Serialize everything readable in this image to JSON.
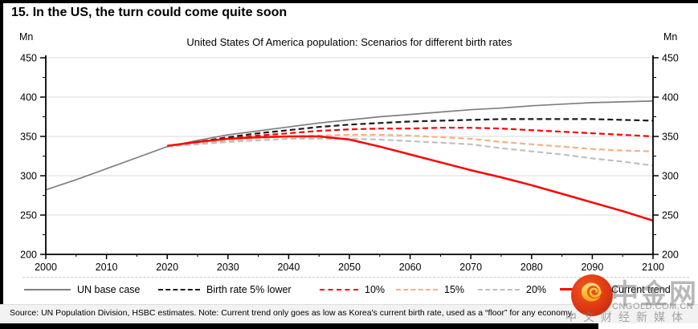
{
  "page_title": "15. In the US, the turn could come quite soon",
  "axis_unit_left": "Mn",
  "axis_unit_right": "Mn",
  "footer": {
    "source": "Source: UN Population Division, HSBC estimates. Note: Current trend only goes as low as Korea's current birth rate, used as a “floor” for any economy."
  },
  "watermark": {
    "brand": "中金网",
    "domain": "CNGOLD.COM.CN",
    "tagline": "中文财经新媒体"
  },
  "chart_data": {
    "type": "line",
    "title": "United States Of America population: Scenarios for different birth rates",
    "xlabel": "",
    "ylabel": "Mn",
    "ylim": [
      200,
      450
    ],
    "xlim": [
      2000,
      2100
    ],
    "y_ticks": [
      200,
      250,
      300,
      350,
      400,
      450
    ],
    "x_ticks": [
      2000,
      2010,
      2020,
      2030,
      2040,
      2050,
      2060,
      2070,
      2080,
      2090,
      2100
    ],
    "grid": "horizontal",
    "legend_position": "bottom",
    "x_years": [
      2000,
      2005,
      2010,
      2015,
      2020,
      2025,
      2030,
      2035,
      2040,
      2045,
      2050,
      2055,
      2060,
      2065,
      2070,
      2075,
      2080,
      2085,
      2090,
      2095,
      2100
    ],
    "series": [
      {
        "name": "UN base case",
        "color": "#7f7f7f",
        "style": "solid",
        "width": 1.7,
        "values": [
          282,
          295,
          309,
          323,
          337,
          345,
          352,
          357,
          362,
          367,
          371,
          375,
          378,
          381,
          384,
          386,
          389,
          391,
          393,
          394,
          395
        ]
      },
      {
        "name": "Birth rate 5% lower",
        "color": "#1a1a1a",
        "style": "dashed",
        "width": 2.2,
        "values": [
          null,
          null,
          null,
          null,
          337,
          343,
          349,
          354,
          358,
          362,
          365,
          367,
          369,
          370,
          371,
          372,
          372,
          372,
          372,
          371,
          370
        ]
      },
      {
        "name": "10%",
        "color": "#ff0000",
        "style": "dashed",
        "width": 2.2,
        "values": [
          null,
          null,
          null,
          null,
          337,
          342,
          347,
          351,
          354,
          357,
          359,
          360,
          360,
          361,
          361,
          360,
          358,
          356,
          354,
          352,
          350
        ]
      },
      {
        "name": "15%",
        "color": "#f4b183",
        "style": "dashed",
        "width": 2.2,
        "values": [
          null,
          null,
          null,
          null,
          337,
          341,
          345,
          348,
          350,
          351,
          352,
          352,
          351,
          349,
          347,
          343,
          340,
          337,
          334,
          332,
          331
        ]
      },
      {
        "name": "20%",
        "color": "#bfbfbf",
        "style": "dashed",
        "width": 2.2,
        "values": [
          null,
          null,
          null,
          null,
          337,
          340,
          343,
          345,
          347,
          347,
          347,
          346,
          344,
          342,
          340,
          335,
          331,
          327,
          322,
          318,
          313
        ]
      },
      {
        "name": "Current trend",
        "color": "#ff0000",
        "style": "solid",
        "width": 2.5,
        "values": [
          null,
          null,
          null,
          null,
          338,
          343,
          347,
          349,
          350,
          350,
          346,
          337,
          327,
          317,
          307,
          298,
          288,
          277,
          266,
          255,
          243
        ]
      }
    ]
  }
}
